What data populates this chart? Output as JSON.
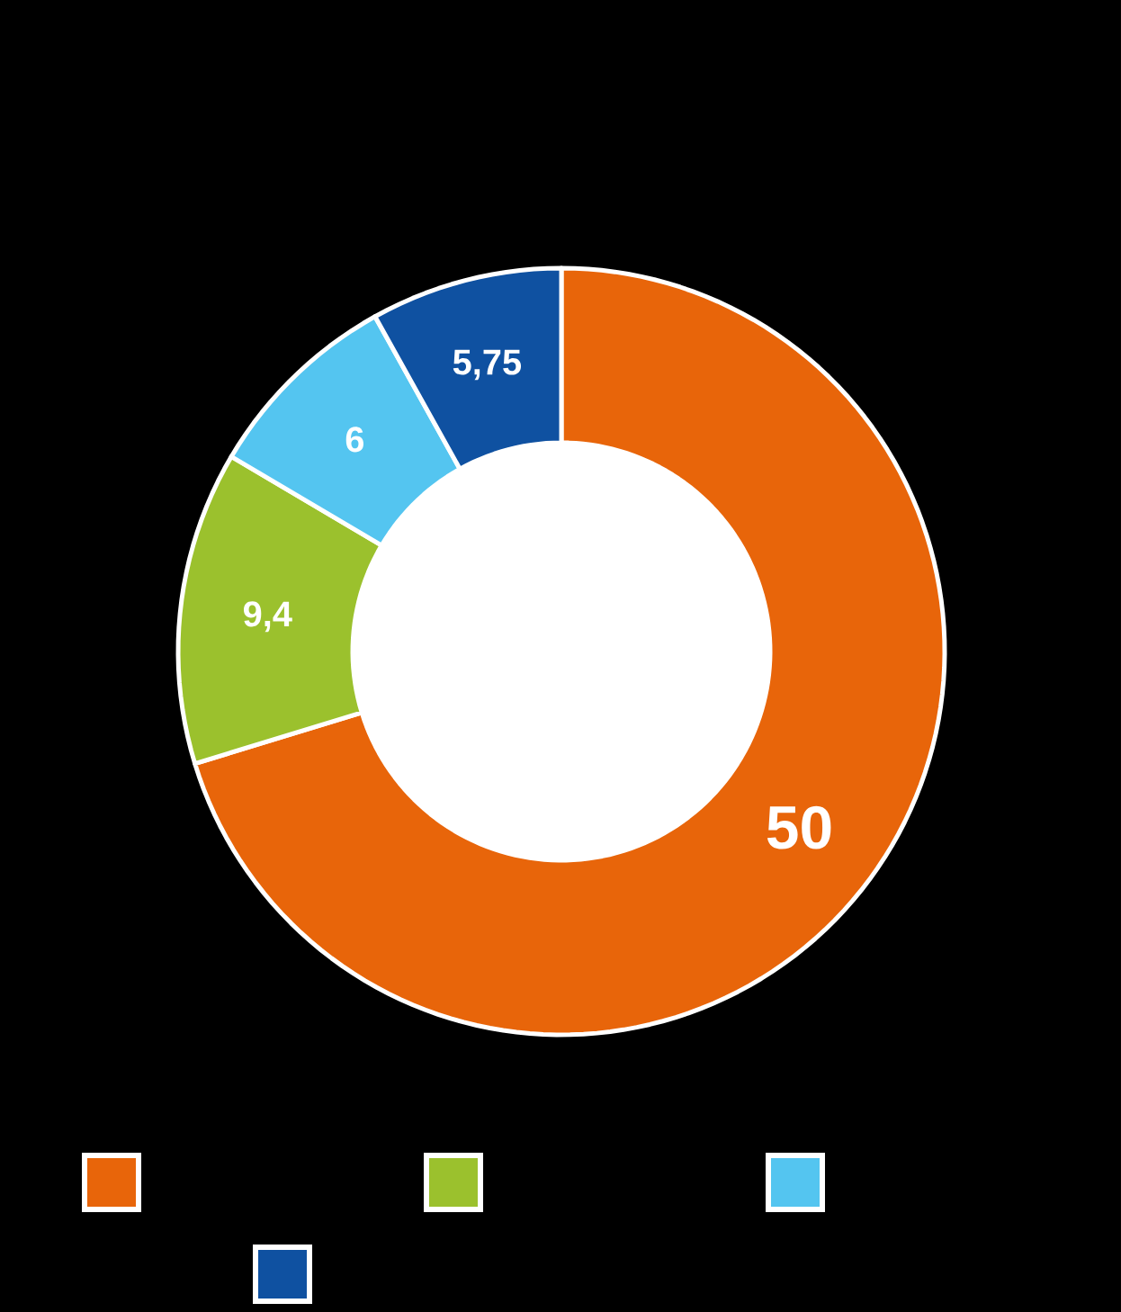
{
  "chart_data": {
    "type": "donut",
    "categories": [
      null,
      null,
      null,
      null
    ],
    "values": [
      50,
      9.4,
      6,
      5.75
    ],
    "colors": [
      "#e8650a",
      "#9bc12d",
      "#54c5f0",
      "#0f51a1"
    ],
    "value_labels": [
      "50",
      "9,4",
      "6",
      "5,75"
    ]
  }
}
